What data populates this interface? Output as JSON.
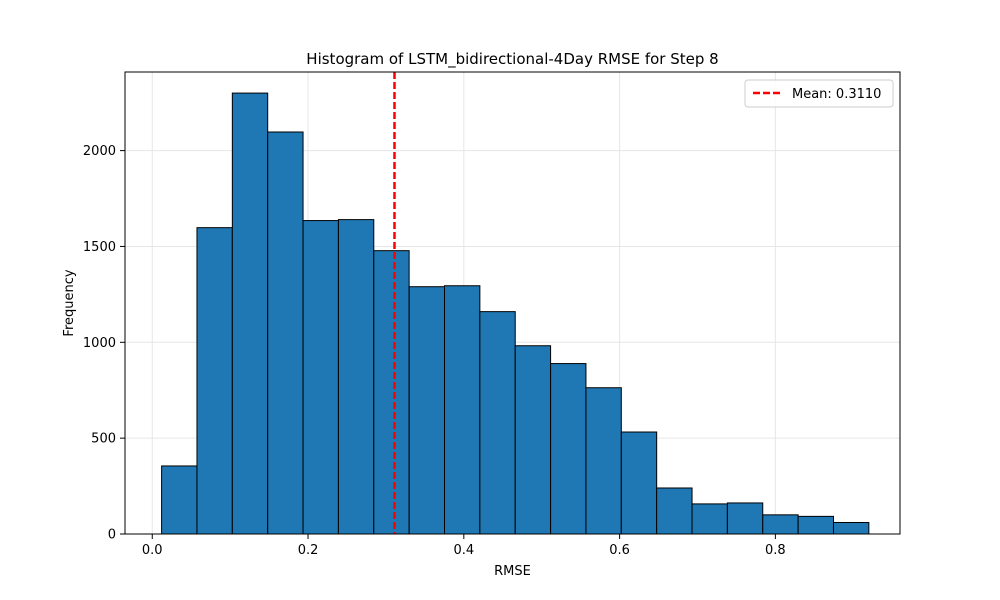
{
  "chart_data": {
    "type": "bar",
    "title": "Histogram of LSTM_bidirectional-4Day RMSE for Step 8",
    "xlabel": "RMSE",
    "ylabel": "Frequency",
    "xlim": [
      -0.035,
      0.96
    ],
    "ylim": [
      0,
      2410
    ],
    "xticks": [
      0.0,
      0.2,
      0.4,
      0.6,
      0.8
    ],
    "xtick_labels": [
      "0.0",
      "0.2",
      "0.4",
      "0.6",
      "0.8"
    ],
    "yticks": [
      0,
      500,
      1000,
      1500,
      2000
    ],
    "ytick_labels": [
      "0",
      "500",
      "1000",
      "1500",
      "2000"
    ],
    "grid": true,
    "legend_position": "top-right",
    "bar_color": "#1f77b4",
    "edge_color": "#000000",
    "bin_edges": [
      0.012,
      0.0574,
      0.1028,
      0.1482,
      0.1936,
      0.239,
      0.2844,
      0.3298,
      0.3752,
      0.4206,
      0.466,
      0.5114,
      0.5568,
      0.6022,
      0.6476,
      0.693,
      0.7384,
      0.7838,
      0.8292,
      0.8746,
      0.92
    ],
    "values": [
      355,
      1598,
      2300,
      2097,
      1635,
      1640,
      1478,
      1290,
      1295,
      1160,
      982,
      889,
      763,
      532,
      240,
      157,
      162,
      100,
      92,
      60
    ],
    "mean_line": {
      "value": 0.311,
      "label": "Mean: 0.3110",
      "color": "#ff0000",
      "style": "dashed"
    }
  }
}
